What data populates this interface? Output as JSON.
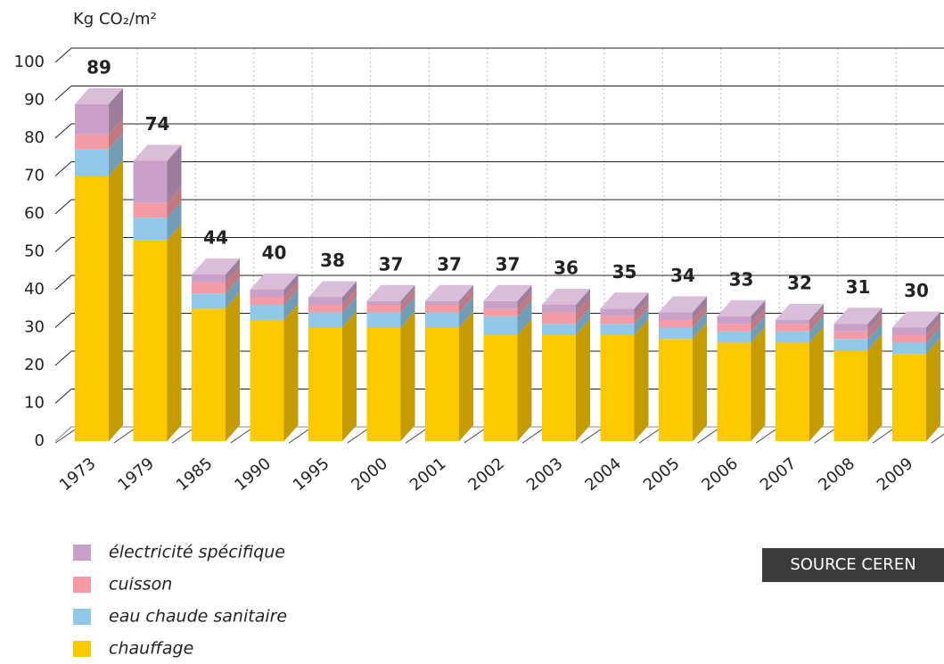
{
  "chart_data": {
    "type": "bar",
    "stacked": true,
    "y_axis_label": "Kg CO₂/m²",
    "categories": [
      "1973",
      "1979",
      "1985",
      "1990",
      "1995",
      "2000",
      "2001",
      "2002",
      "2003",
      "2004",
      "2005",
      "2006",
      "2007",
      "2008",
      "2009"
    ],
    "series": [
      {
        "name": "chauffage",
        "color": "#fcc800",
        "values": [
          70,
          53,
          35,
          32,
          30,
          30,
          30,
          28,
          28,
          28,
          27,
          26,
          26,
          24,
          23
        ]
      },
      {
        "name": "eau chaude sanitaire",
        "color": "#93c9e8",
        "values": [
          7,
          6,
          4,
          4,
          4,
          4,
          4,
          5,
          3,
          3,
          3,
          3,
          3,
          3,
          3
        ]
      },
      {
        "name": "cuisson",
        "color": "#f59ba6",
        "values": [
          4,
          4,
          3,
          2,
          2,
          2,
          2,
          2,
          3,
          2,
          2,
          2,
          2,
          2,
          2
        ]
      },
      {
        "name": "électricité spécifique",
        "color": "#c8a0c8",
        "values": [
          8,
          11,
          2,
          2,
          2,
          1,
          1,
          2,
          2,
          2,
          2,
          2,
          1,
          2,
          2
        ]
      }
    ],
    "totals": [
      89,
      74,
      44,
      40,
      38,
      37,
      37,
      37,
      36,
      35,
      34,
      33,
      32,
      31,
      30
    ],
    "ylim": [
      0,
      100
    ],
    "yticks": [
      0,
      10,
      20,
      30,
      40,
      50,
      60,
      70,
      80,
      90,
      100
    ],
    "grid": true,
    "source": "SOURCE CEREN"
  }
}
